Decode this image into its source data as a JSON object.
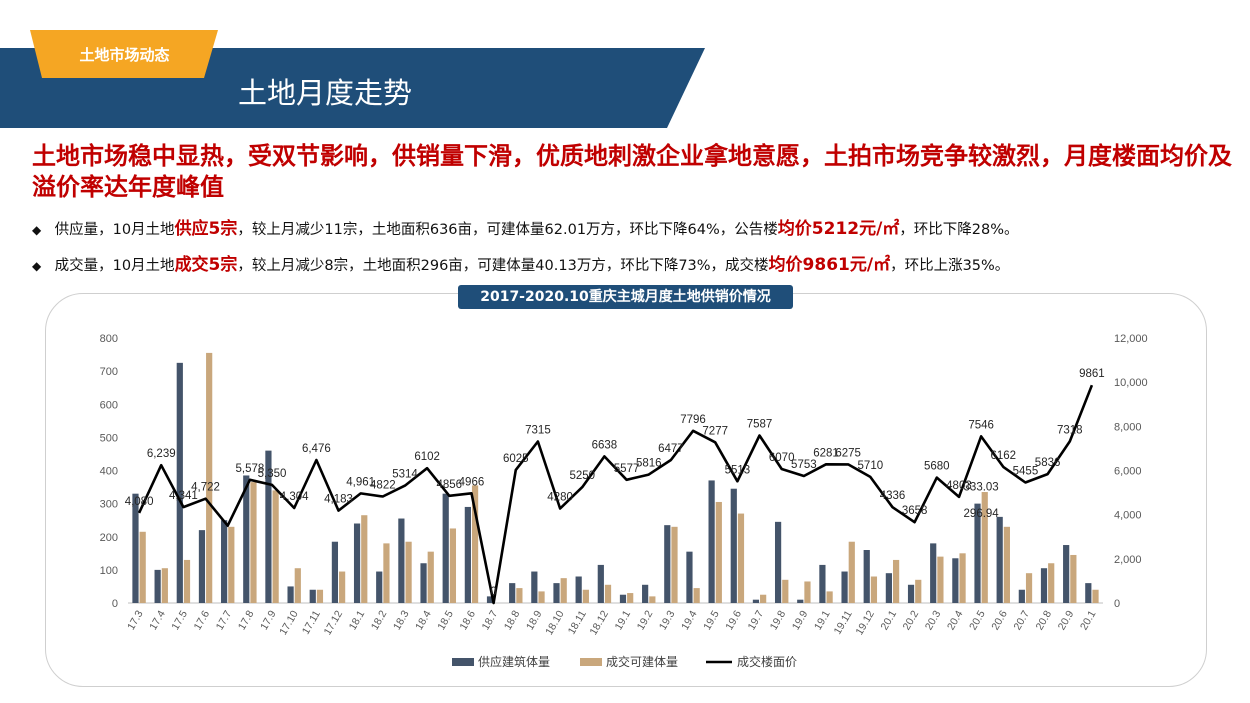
{
  "header": {
    "tag": "土地市场动态",
    "title": "土地月度走势"
  },
  "headline": "土地市场稳中显热，受双节影响，供销量下滑，优质地刺激企业拿地意愿，土拍市场竞争较激烈，月度楼面均价及溢价率达年度峰值",
  "bullets": [
    {
      "lead": "供应量，10月土地",
      "hl1": "供应5宗",
      "mid": "，较上月减少11宗，土地面积636亩，可建体量62.01万方，环比下降64%，公告楼",
      "hl2": "均价5212元/㎡",
      "tail": "，环比下降28%。"
    },
    {
      "lead": "成交量，10月土地",
      "hl1": "成交5宗",
      "mid": "，较上月减少8宗，土地面积296亩，可建体量40.13万方，环比下降73%，成交楼",
      "hl2": "均价9861元/㎡",
      "tail": "，环比上涨35%。"
    }
  ],
  "colors": {
    "banner": "#1f4e79",
    "tag": "#f5a623",
    "supply_bar": "#44546a",
    "deal_bar": "#c9a77c",
    "price_line": "#000000",
    "accent_red": "#c00000"
  },
  "chart_data": {
    "type": "bar",
    "title": "2017-2020.10重庆主城月度土地供销价情况",
    "categories": [
      "17.3",
      "17.4",
      "17.5",
      "17.6",
      "17.7",
      "17.8",
      "17.9",
      "17.10",
      "17.11",
      "17.12",
      "18.1",
      "18.2",
      "18.3",
      "18.4",
      "18.5",
      "18.6",
      "18.7",
      "18.8",
      "18.9",
      "18.10",
      "18.11",
      "18.12",
      "19.1",
      "19.2",
      "19.3",
      "19.4",
      "19.5",
      "19.6",
      "19.7",
      "19.8",
      "19.9",
      "19.10",
      "19.11",
      "19.12",
      "20.1",
      "20.2",
      "20.3",
      "20.4",
      "20.5",
      "20.6",
      "20.7",
      "20.8",
      "20.9",
      "20.10"
    ],
    "category_labels": [
      "17.3",
      "17.4",
      "17.5",
      "17.6",
      "17.7",
      "17.8",
      "17.9",
      "17.10",
      "17.11",
      "17.12",
      "18.1",
      "18.2",
      "18.3",
      "18.4",
      "18.5",
      "18.6",
      "18.7",
      "18.8",
      "18.9",
      "18.10",
      "18.11",
      "18.12",
      "19.1",
      "19.2",
      "19.3",
      "19.4",
      "19.5",
      "19.6",
      "19.7",
      "19.8",
      "19.9",
      "19.1",
      "19.11",
      "19.12",
      "20.1",
      "20.2",
      "20.3",
      "20.4",
      "20.5",
      "20.6",
      "20.7",
      "20.8",
      "20.9",
      "20.1"
    ],
    "y_left": {
      "ticks": [
        "800",
        "700",
        "600",
        "500",
        "400",
        "300",
        "200",
        "100",
        "0"
      ],
      "ylim": [
        0,
        800
      ]
    },
    "y_right": {
      "ticks": [
        "12,000",
        "10,000",
        "8,000",
        "6,000",
        "4,000",
        "2,000",
        "0"
      ],
      "ylim": [
        0,
        12000
      ]
    },
    "series": [
      {
        "name": "供应建筑体量",
        "type": "bar",
        "axis": "left",
        "values": [
          330,
          100,
          725,
          220,
          250,
          385,
          460,
          50,
          40,
          185,
          240,
          95,
          255,
          120,
          330,
          290,
          20,
          60,
          95,
          60,
          80,
          115,
          25,
          55,
          235,
          155,
          370,
          345,
          10,
          245,
          10,
          115,
          95,
          160,
          90,
          55,
          180,
          135,
          300,
          260,
          40,
          105,
          175,
          60
        ]
      },
      {
        "name": "成交可建体量",
        "type": "bar",
        "axis": "left",
        "values": [
          215,
          105,
          130,
          755,
          230,
          365,
          340,
          105,
          40,
          95,
          265,
          180,
          185,
          155,
          225,
          355,
          0,
          45,
          35,
          75,
          40,
          55,
          30,
          20,
          230,
          45,
          305,
          270,
          25,
          70,
          65,
          35,
          185,
          80,
          130,
          70,
          140,
          150,
          335,
          230,
          90,
          120,
          145,
          40
        ]
      },
      {
        "name": "成交楼面价",
        "type": "line",
        "axis": "right",
        "values": [
          4080,
          6239,
          4341,
          4722,
          3500,
          5578,
          5350,
          4304,
          6476,
          4183,
          4961,
          4822,
          5314,
          6102,
          4856,
          4966,
          0,
          6025,
          7315,
          4280,
          5250,
          6638,
          5577,
          5816,
          6477,
          7796,
          7277,
          5513,
          7587,
          6070,
          5753,
          6281,
          6275,
          5710,
          4336,
          3658,
          5680,
          4803,
          7546,
          6162,
          5455,
          5836,
          7318,
          9861
        ],
        "labels": [
          "4,080",
          "6,239",
          "4,341",
          "4,722",
          "",
          "5,578",
          "5,350",
          "4,304",
          "6,476",
          "4,183",
          "4,961",
          "4822",
          "5314",
          "6102",
          "4856",
          "4966",
          "0",
          "6025",
          "7315",
          "4280",
          "5250",
          "6638",
          "5577",
          "5816",
          "6477",
          "7796",
          "7277",
          "5513",
          "7587",
          "6070",
          "5753",
          "6281",
          "6275",
          "5710",
          "4336",
          "3658",
          "5680",
          "4803",
          "7546",
          "6162",
          "5455",
          "5836",
          "7318",
          "9861"
        ]
      }
    ],
    "extra_labels": [
      {
        "text": "296.94",
        "category_index": 38,
        "y": 3900
      },
      {
        "text": "333.03",
        "category_index": 38,
        "y": 5100
      }
    ],
    "legend": {
      "position": "bottom",
      "entries": [
        "供应建筑体量",
        "成交可建体量",
        "成交楼面价"
      ]
    },
    "grid": false
  }
}
